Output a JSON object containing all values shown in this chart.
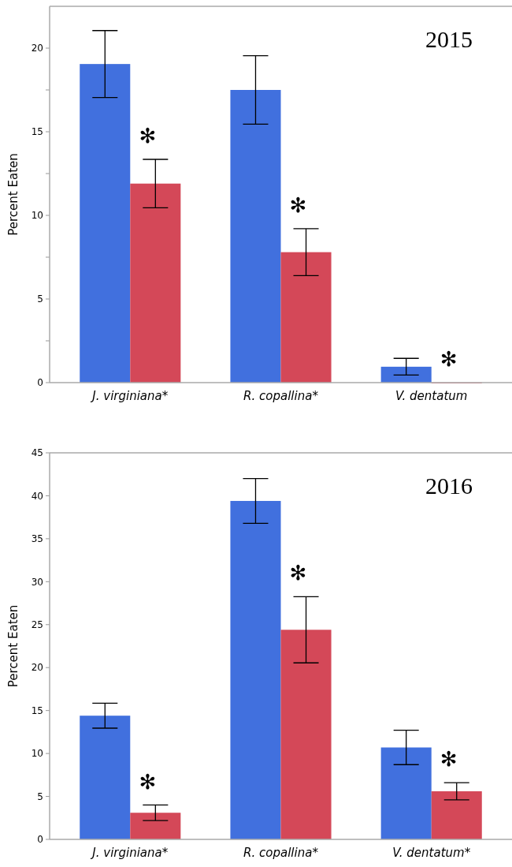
{
  "chart_data": [
    {
      "type": "bar",
      "title": "2015",
      "ylabel": "Percent Eaten",
      "categories": [
        "J. virginiana*",
        "R. copallina*",
        "V. dentatum"
      ],
      "series": [
        {
          "color": "#4170de",
          "values": [
            19.05,
            17.5,
            0.95
          ],
          "errors": [
            2,
            2.05,
            0.5
          ]
        },
        {
          "color": "#d44858",
          "values": [
            11.9,
            7.8,
            0
          ],
          "errors": [
            1.45,
            1.4,
            null
          ]
        }
      ],
      "ylim": [
        0,
        22.5
      ],
      "yticks": [
        0,
        {
          "value": 2.5,
          "label": null
        },
        5,
        {
          "value": 7.5,
          "label": null
        },
        10,
        {
          "value": 12.5,
          "label": null
        },
        15,
        {
          "value": 17.5,
          "label": null
        },
        20
      ],
      "annotations": [
        "✻",
        "✻",
        "✻"
      ]
    },
    {
      "type": "bar",
      "title": "2016",
      "ylabel": "Percent Eaten",
      "categories": [
        "J. virginiana*",
        "R. copallina*",
        "V. dentatum*"
      ],
      "series": [
        {
          "color": "#4170de",
          "values": [
            14.4,
            39.4,
            10.7
          ],
          "errors": [
            1.45,
            2.6,
            2
          ]
        },
        {
          "color": "#d44858",
          "values": [
            3.1,
            24.4,
            5.6
          ],
          "errors": [
            0.9,
            3.85,
            1
          ]
        }
      ],
      "ylim": [
        0,
        45
      ],
      "yticks": [
        0,
        5,
        10,
        15,
        20,
        25,
        30,
        35,
        40,
        45
      ],
      "annotations": [
        "✻",
        "✻",
        "✻"
      ]
    }
  ]
}
